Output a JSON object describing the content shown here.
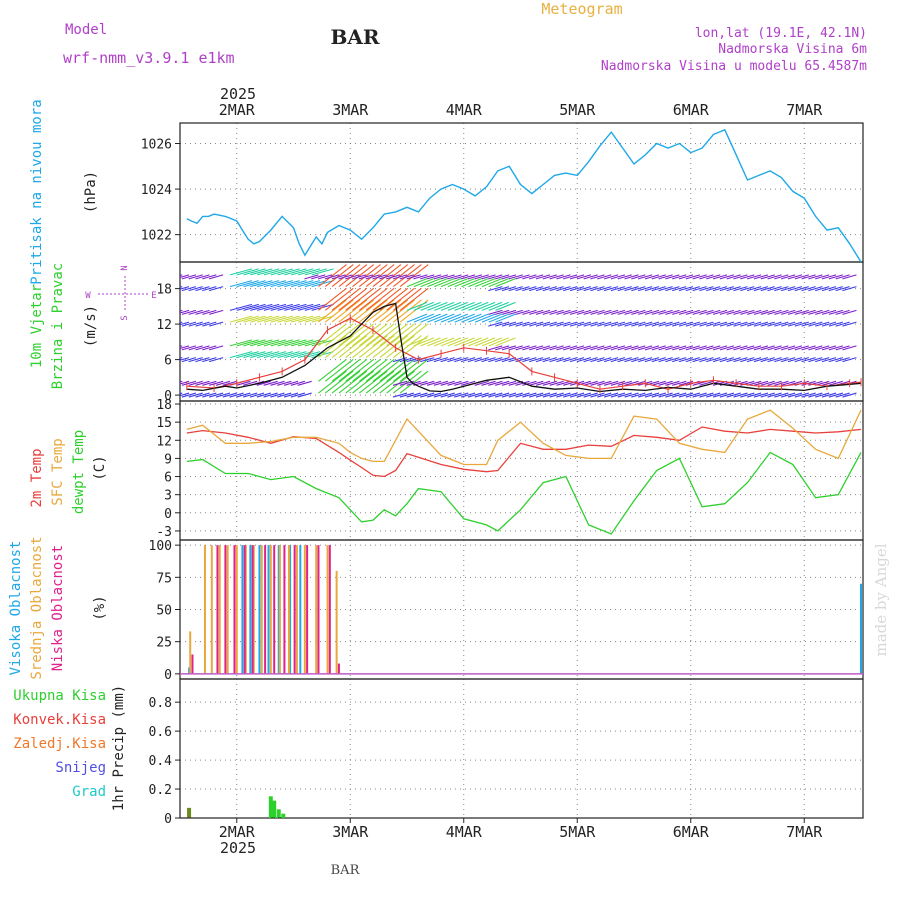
{
  "header": {
    "model_label": "Model",
    "model_name": "wrf-nmm_v3.9.1 e1km",
    "station": "BAR",
    "title": "Meteogram",
    "coords": "lon,lat (19.1E, 42.1N)",
    "elevation": "Nadmorska Visina 6m",
    "model_elevation": "Nadmorska Visina u modelu 65.4587m",
    "footer_station": "BAR",
    "watermark": "made by Angel"
  },
  "colors": {
    "pressure": "#1ea8e8",
    "temp2m": "#e8403c",
    "sfc_temp": "#e8a83c",
    "dewpt": "#2ed02e",
    "high_cloud": "#1ea8e8",
    "mid_cloud": "#e8a83c",
    "low_cloud": "#e0208c",
    "total_precip": "#2ed02e",
    "conv_precip": "#e8403c",
    "frozen_precip": "#f07828",
    "snow": "#5050e0",
    "hail": "#20c8c8",
    "grid": "#888888",
    "model_label": "#b040c8",
    "title": "#e8b040"
  },
  "x_axis": {
    "year": "2025",
    "ticks": [
      "2MAR",
      "3MAR",
      "4MAR",
      "5MAR",
      "6MAR",
      "7MAR"
    ]
  },
  "chart_data": [
    {
      "type": "line",
      "panel": "pressure",
      "ylabel": [
        "Pritisak na nivou mora",
        "(hPa)"
      ],
      "yticks": [
        1022,
        1024,
        1026
      ],
      "ylim": [
        1020.8,
        1026.9
      ],
      "x_unit": "days from 1MAR 00UTC",
      "series": [
        {
          "name": "Pritisak na nivou mora",
          "x": [
            1.56,
            1.6,
            1.65,
            1.7,
            1.75,
            1.8,
            1.9,
            2.0,
            2.05,
            2.1,
            2.15,
            2.2,
            2.3,
            2.4,
            2.5,
            2.55,
            2.6,
            2.65,
            2.7,
            2.75,
            2.8,
            2.9,
            3.0,
            3.1,
            3.2,
            3.3,
            3.4,
            3.5,
            3.6,
            3.7,
            3.8,
            3.9,
            4.0,
            4.1,
            4.2,
            4.3,
            4.4,
            4.5,
            4.6,
            4.7,
            4.8,
            4.9,
            5.0,
            5.1,
            5.2,
            5.3,
            5.4,
            5.5,
            5.6,
            5.7,
            5.8,
            5.9,
            6.0,
            6.1,
            6.2,
            6.3,
            6.4,
            6.5,
            6.6,
            6.7,
            6.8,
            6.9,
            7.0,
            7.1,
            7.2,
            7.3,
            7.4,
            7.5
          ],
          "values": [
            1022.7,
            1022.6,
            1022.5,
            1022.8,
            1022.8,
            1022.9,
            1022.8,
            1022.6,
            1022.2,
            1021.8,
            1021.6,
            1021.7,
            1022.2,
            1022.8,
            1022.3,
            1021.6,
            1021.1,
            1021.5,
            1021.9,
            1021.6,
            1022.1,
            1022.4,
            1022.2,
            1021.8,
            1022.3,
            1022.9,
            1023.0,
            1023.2,
            1023.0,
            1023.6,
            1024.0,
            1024.2,
            1024.0,
            1023.7,
            1024.1,
            1024.8,
            1025.0,
            1024.2,
            1023.8,
            1024.2,
            1024.6,
            1024.7,
            1024.6,
            1025.2,
            1025.9,
            1026.5,
            1025.8,
            1025.1,
            1025.5,
            1026.0,
            1025.8,
            1026.0,
            1025.6,
            1025.8,
            1026.4,
            1026.6,
            1025.5,
            1024.4,
            1024.6,
            1024.8,
            1024.5,
            1023.9,
            1023.6,
            1022.8,
            1022.2,
            1022.3,
            1021.6,
            1020.8
          ]
        }
      ]
    },
    {
      "type": "line",
      "panel": "wind",
      "ylabel": [
        "10m Vjetar",
        "Brzina i Pravac",
        "(m/s)"
      ],
      "compass": {
        "n": "N",
        "e": "E",
        "s": "S",
        "w": "W"
      },
      "yticks": [
        0,
        6,
        12,
        18
      ],
      "ylim": [
        -1,
        22.5
      ],
      "x_unit": "days from 1MAR 00UTC",
      "series": [
        {
          "name": "10m wind speed",
          "x": [
            1.56,
            1.7,
            1.9,
            2.0,
            2.2,
            2.4,
            2.6,
            2.8,
            3.0,
            3.1,
            3.2,
            3.3,
            3.4,
            3.45,
            3.5,
            3.55,
            3.6,
            3.7,
            3.8,
            3.9,
            4.0,
            4.2,
            4.4,
            4.6,
            4.8,
            5.0,
            5.2,
            5.4,
            5.6,
            5.8,
            6.0,
            6.2,
            6.4,
            6.6,
            6.8,
            7.0,
            7.2,
            7.4,
            7.5
          ],
          "values": [
            1.0,
            0.8,
            1.5,
            1.2,
            2.0,
            3.0,
            5.0,
            8.0,
            10.0,
            12.0,
            14.0,
            15.0,
            15.5,
            9.0,
            3.0,
            2.0,
            1.5,
            0.7,
            0.6,
            1.0,
            1.5,
            2.5,
            3.0,
            1.5,
            1.0,
            1.2,
            0.6,
            1.0,
            0.8,
            1.3,
            1.0,
            2.0,
            1.5,
            1.0,
            1.0,
            0.8,
            1.5,
            1.8,
            2.0
          ]
        },
        {
          "name": "10m wind direction",
          "x": [
            1.56,
            1.8,
            2.0,
            2.2,
            2.4,
            2.6,
            2.8,
            3.0,
            3.2,
            3.4,
            3.6,
            3.8,
            4.0,
            4.2,
            4.4,
            4.6,
            4.8,
            5.0,
            5.2,
            5.4,
            5.6,
            5.8,
            6.0,
            6.2,
            6.4,
            6.6,
            6.8,
            7.0,
            7.2,
            7.4,
            7.5
          ],
          "values": [
            1.5,
            1.2,
            2.0,
            3.0,
            4.0,
            6.0,
            11.0,
            13.0,
            11.0,
            8.0,
            6.0,
            7.0,
            8.0,
            7.5,
            7.0,
            4.0,
            3.0,
            2.0,
            1.0,
            1.5,
            2.0,
            1.0,
            2.0,
            2.5,
            2.0,
            1.5,
            1.5,
            2.0,
            1.5,
            2.0,
            2.2
          ]
        }
      ]
    },
    {
      "type": "line",
      "panel": "temperature",
      "ylabel": [
        "2m Temp",
        "SFC Temp",
        "dewpt Temp",
        "(C)"
      ],
      "yticks": [
        -3,
        0,
        3,
        6,
        9,
        12,
        15,
        18
      ],
      "ylim": [
        -4.5,
        18.5
      ],
      "x_unit": "days from 1MAR 00UTC",
      "series": [
        {
          "name": "2m Temp",
          "x": [
            1.56,
            1.7,
            1.9,
            2.1,
            2.3,
            2.5,
            2.7,
            2.9,
            3.0,
            3.1,
            3.2,
            3.3,
            3.4,
            3.5,
            3.6,
            3.8,
            4.0,
            4.2,
            4.3,
            4.5,
            4.7,
            4.9,
            5.1,
            5.3,
            5.5,
            5.7,
            5.9,
            6.1,
            6.3,
            6.5,
            6.7,
            6.9,
            7.1,
            7.3,
            7.5
          ],
          "values": [
            13.2,
            13.6,
            13.2,
            12.5,
            11.5,
            12.6,
            12.3,
            10.0,
            8.7,
            7.5,
            6.2,
            6.0,
            7.0,
            9.8,
            9.2,
            8.0,
            7.2,
            6.8,
            7.0,
            11.5,
            10.5,
            10.5,
            11.2,
            11.0,
            12.8,
            12.5,
            12.0,
            14.2,
            13.5,
            13.2,
            13.8,
            13.5,
            13.2,
            13.4,
            13.8
          ]
        },
        {
          "name": "SFC Temp",
          "x": [
            1.56,
            1.7,
            1.9,
            2.1,
            2.3,
            2.5,
            2.7,
            2.9,
            3.0,
            3.1,
            3.2,
            3.3,
            3.4,
            3.5,
            3.6,
            3.8,
            4.0,
            4.2,
            4.3,
            4.5,
            4.7,
            4.9,
            5.1,
            5.3,
            5.5,
            5.7,
            5.9,
            6.1,
            6.3,
            6.5,
            6.7,
            6.9,
            7.1,
            7.3,
            7.5
          ],
          "values": [
            13.8,
            14.5,
            11.5,
            11.5,
            11.8,
            12.5,
            12.5,
            11.5,
            10.0,
            9.0,
            8.5,
            8.5,
            12.0,
            15.5,
            13.5,
            9.5,
            8.0,
            8.0,
            12.0,
            15.0,
            11.5,
            9.5,
            9.0,
            9.0,
            16.0,
            15.5,
            11.5,
            10.5,
            10.0,
            15.5,
            17.0,
            14.0,
            10.5,
            9.0,
            17.0
          ]
        },
        {
          "name": "dewpt Temp",
          "x": [
            1.56,
            1.7,
            1.9,
            2.1,
            2.3,
            2.5,
            2.7,
            2.9,
            3.0,
            3.1,
            3.2,
            3.3,
            3.4,
            3.5,
            3.6,
            3.8,
            4.0,
            4.2,
            4.3,
            4.5,
            4.7,
            4.9,
            5.1,
            5.3,
            5.5,
            5.7,
            5.9,
            6.1,
            6.3,
            6.5,
            6.7,
            6.9,
            7.1,
            7.3,
            7.5
          ],
          "values": [
            8.5,
            8.8,
            6.5,
            6.5,
            5.5,
            6.0,
            4.0,
            2.5,
            0.5,
            -1.5,
            -1.2,
            0.5,
            -0.5,
            1.5,
            4.0,
            3.5,
            -1.0,
            -2.0,
            -3.0,
            0.5,
            5.0,
            6.0,
            -2.0,
            -3.5,
            2.0,
            7.0,
            9.0,
            1.0,
            1.5,
            5.0,
            10.0,
            8.0,
            2.5,
            3.0,
            10.0
          ]
        }
      ]
    },
    {
      "type": "bar",
      "panel": "cloud",
      "ylabel": [
        "Visoka Oblacnost",
        "Srednja Oblacnost",
        "Niska Oblacnost",
        "(%)"
      ],
      "yticks": [
        0,
        25,
        50,
        75,
        100
      ],
      "ylim": [
        -4,
        104
      ],
      "x_unit": "days from 1MAR 00UTC",
      "series": [
        {
          "name": "Visoka Oblacnost",
          "x": [
            1.58,
            1.72,
            1.8,
            1.88,
            1.95,
            2.05,
            2.12,
            2.2,
            2.28,
            2.37,
            2.47,
            2.56,
            2.68,
            7.5
          ],
          "values": [
            5,
            0,
            0,
            0,
            0,
            100,
            100,
            100,
            100,
            100,
            100,
            100,
            0,
            70
          ]
        },
        {
          "name": "Srednja Oblacnost",
          "x": [
            1.59,
            1.64,
            1.72,
            1.78,
            1.85,
            1.92,
            2.0,
            2.08,
            2.15,
            2.22,
            2.3,
            2.38,
            2.46,
            2.53,
            2.6,
            2.7,
            2.8,
            2.88
          ],
          "values": [
            33,
            0,
            100,
            100,
            100,
            100,
            100,
            100,
            100,
            100,
            100,
            100,
            100,
            100,
            100,
            100,
            100,
            80
          ]
        },
        {
          "name": "Niska Oblacnost",
          "x": [
            1.61,
            1.75,
            1.83,
            1.9,
            1.98,
            2.07,
            2.14,
            2.25,
            2.33,
            2.42,
            2.51,
            2.62,
            2.72,
            2.82,
            2.9
          ],
          "values": [
            15,
            0,
            100,
            100,
            100,
            100,
            100,
            100,
            100,
            100,
            100,
            100,
            100,
            100,
            8
          ]
        }
      ]
    },
    {
      "type": "bar",
      "panel": "precip",
      "ylabel": [
        "1hr Precip (mm)"
      ],
      "legend": [
        "Ukupna Kisa",
        "Konvek.Kisa",
        "Zaledj.Kisa",
        "Snijeg",
        "Grad"
      ],
      "yticks": [
        0,
        0.2,
        0.4,
        0.6,
        0.8
      ],
      "ylim": [
        0,
        0.96
      ],
      "x_unit": "days from 1MAR 00UTC",
      "series": [
        {
          "name": "Ukupna Kisa",
          "x": [
            1.58,
            2.3,
            2.33,
            2.37,
            2.41
          ],
          "values": [
            0.07,
            0.15,
            0.12,
            0.06,
            0.03
          ]
        }
      ]
    }
  ]
}
